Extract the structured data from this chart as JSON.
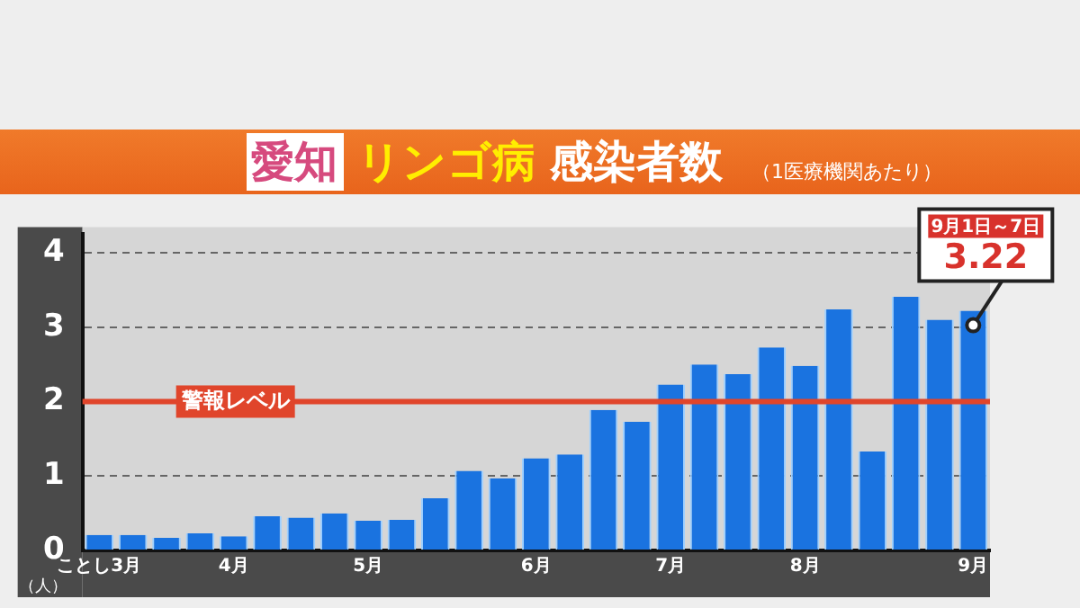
{
  "chart_data": {
    "type": "bar",
    "title": "愛知 リンゴ病 感染者数",
    "subtitle": "（1医療機関あたり）",
    "ylabel": "（人）",
    "categories": [
      "ことし3月",
      null,
      null,
      null,
      "4月",
      null,
      null,
      null,
      "5月",
      null,
      null,
      null,
      null,
      "6月",
      null,
      null,
      null,
      "7月",
      null,
      null,
      null,
      "8月",
      null,
      null,
      null,
      null,
      "9月"
    ],
    "values": [
      0.21,
      0.21,
      0.17,
      0.23,
      0.19,
      0.46,
      0.44,
      0.5,
      0.4,
      0.41,
      0.7,
      1.07,
      0.97,
      1.24,
      1.29,
      1.89,
      1.73,
      2.23,
      2.5,
      2.37,
      2.73,
      2.48,
      3.24,
      1.33,
      3.41,
      3.1,
      3.22
    ],
    "value_labels": [
      null,
      null,
      null,
      null,
      null,
      null,
      null,
      null,
      null,
      null,
      null,
      null,
      null,
      null,
      null,
      null,
      null,
      null,
      null,
      null,
      null,
      null,
      null,
      null,
      null,
      null,
      "3.22"
    ],
    "color": "#1a73e0",
    "ylim": [
      0,
      4.25
    ],
    "yticks": [
      0,
      1,
      2,
      3,
      4
    ],
    "grid": "y",
    "ref_lines": [
      {
        "axis": "y",
        "value": 2,
        "label": "警報レベル",
        "color": "#e0452b"
      }
    ],
    "annotations": [
      "9月1日～7日"
    ]
  }
}
